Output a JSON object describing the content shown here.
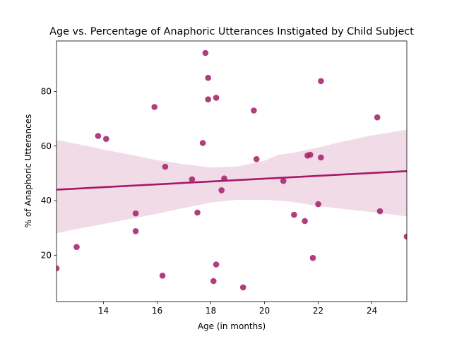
{
  "chart_data": {
    "type": "scatter",
    "title": "Age vs. Percentage of Anaphoric Utterances Instigated by Child Subject",
    "xlabel": "Age (in months)",
    "ylabel": "% of Anaphoric Utterances",
    "xlim": [
      12.25,
      25.3
    ],
    "ylim": [
      3,
      98.5
    ],
    "xticks": [
      14,
      16,
      18,
      20,
      22,
      24
    ],
    "yticks": [
      20,
      40,
      60,
      80
    ],
    "grid": false,
    "colors": {
      "points": "#a8286f",
      "regression": "#a8186a",
      "band": "#f0dbe6"
    },
    "points": [
      {
        "x": 12.25,
        "y": 15.2
      },
      {
        "x": 13.0,
        "y": 23.0
      },
      {
        "x": 13.8,
        "y": 63.7
      },
      {
        "x": 14.1,
        "y": 62.6
      },
      {
        "x": 15.2,
        "y": 35.3
      },
      {
        "x": 15.2,
        "y": 28.8
      },
      {
        "x": 15.9,
        "y": 74.3
      },
      {
        "x": 16.2,
        "y": 12.5
      },
      {
        "x": 16.3,
        "y": 52.4
      },
      {
        "x": 17.3,
        "y": 47.8
      },
      {
        "x": 17.5,
        "y": 35.6
      },
      {
        "x": 17.7,
        "y": 61.1
      },
      {
        "x": 17.8,
        "y": 94.1
      },
      {
        "x": 17.9,
        "y": 85.0
      },
      {
        "x": 17.9,
        "y": 77.1
      },
      {
        "x": 18.1,
        "y": 10.5
      },
      {
        "x": 18.2,
        "y": 77.7
      },
      {
        "x": 18.2,
        "y": 16.6
      },
      {
        "x": 18.4,
        "y": 43.8
      },
      {
        "x": 18.5,
        "y": 48.1
      },
      {
        "x": 19.2,
        "y": 8.2
      },
      {
        "x": 19.6,
        "y": 73.0
      },
      {
        "x": 19.7,
        "y": 55.2
      },
      {
        "x": 20.7,
        "y": 47.2
      },
      {
        "x": 21.1,
        "y": 34.8
      },
      {
        "x": 21.5,
        "y": 32.5
      },
      {
        "x": 21.6,
        "y": 56.5
      },
      {
        "x": 21.7,
        "y": 56.8
      },
      {
        "x": 21.8,
        "y": 19.0
      },
      {
        "x": 22.0,
        "y": 38.7
      },
      {
        "x": 22.1,
        "y": 83.8
      },
      {
        "x": 22.1,
        "y": 55.8
      },
      {
        "x": 24.2,
        "y": 70.5
      },
      {
        "x": 24.3,
        "y": 36.1
      },
      {
        "x": 25.3,
        "y": 26.8
      }
    ],
    "regression": {
      "x": [
        12.25,
        25.3
      ],
      "y": [
        44.0,
        50.8
      ]
    },
    "confidence_band": {
      "x": [
        12.25,
        13.0,
        14.0,
        15.0,
        16.0,
        17.0,
        18.0,
        19.0,
        20.0,
        20.5,
        21.0,
        22.0,
        23.0,
        24.0,
        25.3
      ],
      "upper": [
        62.2,
        60.8,
        58.7,
        56.8,
        54.8,
        53.3,
        52.1,
        52.5,
        54.6,
        56.8,
        57.4,
        59.5,
        61.8,
        63.9,
        66.0
      ],
      "lower": [
        28.0,
        29.6,
        31.4,
        33.3,
        35.2,
        37.3,
        39.3,
        40.3,
        40.3,
        40.0,
        39.6,
        38.0,
        36.9,
        35.8,
        34.2
      ]
    }
  }
}
